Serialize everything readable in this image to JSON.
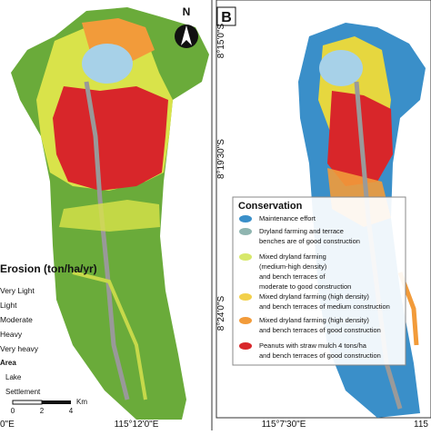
{
  "panel_a": {
    "north": "N",
    "legend_title": "Erosion (ton/ha/yr)",
    "legend_items": [
      "Very Light",
      "Light",
      "Moderate",
      "Heavy",
      "Very heavy"
    ],
    "area_title": "Area",
    "area_items": [
      "Lake",
      "Settlement"
    ],
    "scale": [
      "0",
      "2",
      "4",
      "Km"
    ],
    "x_labels": [
      "0\"E",
      "115°12'0\"E"
    ]
  },
  "panel_b": {
    "label": "B",
    "y_labels": [
      "8°15'0\"S",
      "8°19'30\"S",
      "8°24'0\"S"
    ],
    "x_labels": [
      "115°7'30\"E",
      "115"
    ],
    "legend_title": "Conservation",
    "legend_items": [
      [
        "Maintenance effort"
      ],
      [
        "Dryland farming and terrace",
        "benches are of good construction"
      ],
      [
        "Mixed dryland farming",
        "(medium-high density)",
        "and bench terraces of",
        "moderate to good construction"
      ],
      [
        "Mixed dryland farming (high density)",
        "and bench terraces of medium construction"
      ],
      [
        "Mixed dryland farming (high density)",
        "and bench terraces of good construction"
      ],
      [
        "Peanuts with straw mulch 4 tons/ha",
        "and bench terraces of good construction"
      ]
    ]
  }
}
